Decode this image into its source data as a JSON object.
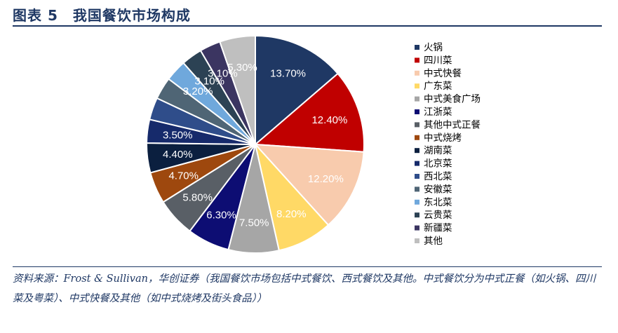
{
  "header": {
    "title": "图表 5　我国餐饮市场构成"
  },
  "source_note": "资料来源：Frost & Sullivan，华创证券（我国餐饮市场包括中式餐饮、西式餐饮及其他。中式餐饮分为中式正餐（如火锅、四川菜及粤菜）、中式快餐及其他（如中式烧烤及街头食品））",
  "chart_data": {
    "type": "pie",
    "legend_position": "right",
    "series": [
      {
        "name": "火锅",
        "value": 13.7,
        "label": "13.70%",
        "color": "#1f3864"
      },
      {
        "name": "四川菜",
        "value": 12.4,
        "label": "12.40%",
        "color": "#c00000"
      },
      {
        "name": "中式快餐",
        "value": 12.2,
        "label": "12.20%",
        "color": "#f8cbad"
      },
      {
        "name": "广东菜",
        "value": 8.2,
        "label": "8.20%",
        "color": "#ffd966"
      },
      {
        "name": "中式美食广场",
        "value": 7.5,
        "label": "7.50%",
        "color": "#a6a6a6"
      },
      {
        "name": "江浙菜",
        "value": 6.3,
        "label": "6.30%",
        "color": "#0d0d73"
      },
      {
        "name": "其他中式正餐",
        "value": 5.8,
        "label": "5.80%",
        "color": "#595f66"
      },
      {
        "name": "中式烧烤",
        "value": 4.7,
        "label": "4.70%",
        "color": "#9e480e"
      },
      {
        "name": "湖南菜",
        "value": 4.4,
        "label": "4.40%",
        "color": "#0b1f3f"
      },
      {
        "name": "北京菜",
        "value": 3.5,
        "label": "3.50%",
        "color": "#162a6b"
      },
      {
        "name": "西北菜",
        "value": 3.3,
        "label": "",
        "color": "#2f4d8a"
      },
      {
        "name": "安徽菜",
        "value": 3.3,
        "label": "",
        "color": "#4f6575"
      },
      {
        "name": "东北菜",
        "value": 3.2,
        "label": "3.20%",
        "color": "#6fa8dc"
      },
      {
        "name": "云贵菜",
        "value": 3.1,
        "label": "3.10%",
        "color": "#2c4254"
      },
      {
        "name": "新疆菜",
        "value": 3.1,
        "label": "3.10%",
        "color": "#3b3561"
      },
      {
        "name": "其他",
        "value": 5.3,
        "label": "5.30%",
        "color": "#bfbfbf"
      }
    ]
  }
}
